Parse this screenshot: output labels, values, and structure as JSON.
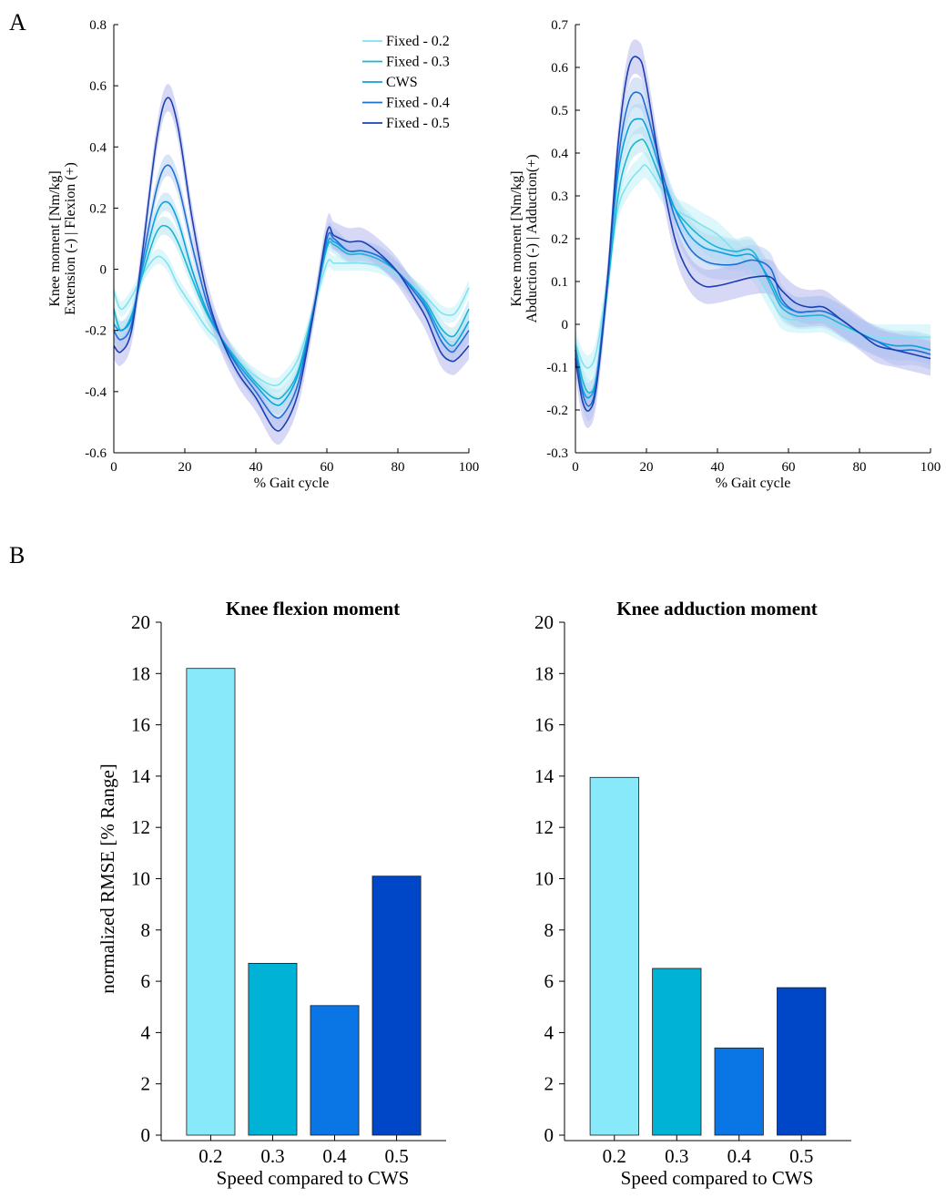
{
  "panel_labels": [
    "A",
    "B"
  ],
  "chart_data": [
    {
      "type": "line",
      "xlabel": "% Gait cycle",
      "ylabel": [
        "Knee moment [Nm/kg]",
        "Extension (-) | Flexion (+)"
      ],
      "xlim": [
        0,
        100
      ],
      "ylim": [
        -0.6,
        0.8
      ],
      "xticks": [
        0,
        20,
        40,
        60,
        80,
        100
      ],
      "yticks": [
        -0.6,
        -0.4,
        -0.2,
        0,
        0.2,
        0.4,
        0.6,
        0.8
      ],
      "ytick_labels": [
        "-0.6",
        "-0.4",
        "-0.2",
        "0",
        "0.2",
        "0.4",
        "0.6",
        "0.8"
      ],
      "grid": false,
      "legend_position": "top-right",
      "series": [
        {
          "name": "Fixed - 0.2",
          "color": "#7fe3f0",
          "band_color": "#c3f1f8",
          "x": [
            0,
            2,
            5,
            8,
            12,
            15,
            18,
            22,
            26,
            30,
            35,
            40,
            45,
            48,
            52,
            56,
            60,
            62,
            66,
            70,
            75,
            80,
            85,
            88,
            92,
            95,
            97,
            100
          ],
          "y": [
            -0.07,
            -0.13,
            -0.09,
            -0.02,
            0.04,
            0.02,
            -0.05,
            -0.12,
            -0.19,
            -0.24,
            -0.3,
            -0.35,
            -0.38,
            -0.36,
            -0.29,
            -0.14,
            0.02,
            0.02,
            0.02,
            0.02,
            0.01,
            -0.02,
            -0.06,
            -0.09,
            -0.14,
            -0.15,
            -0.13,
            -0.06
          ],
          "band": 0.025
        },
        {
          "name": "Fixed - 0.3",
          "color": "#18b6d2",
          "band_color": "#b7e5f0",
          "x": [
            0,
            2,
            5,
            8,
            12,
            15,
            18,
            22,
            26,
            30,
            35,
            40,
            45,
            48,
            52,
            56,
            60,
            62,
            66,
            70,
            75,
            80,
            85,
            88,
            92,
            95,
            97,
            100
          ],
          "y": [
            -0.13,
            -0.2,
            -0.15,
            -0.02,
            0.12,
            0.14,
            0.09,
            -0.03,
            -0.14,
            -0.22,
            -0.3,
            -0.37,
            -0.42,
            -0.41,
            -0.33,
            -0.14,
            0.07,
            0.08,
            0.05,
            0.05,
            0.03,
            -0.01,
            -0.07,
            -0.11,
            -0.19,
            -0.22,
            -0.2,
            -0.13
          ],
          "band": 0.03
        },
        {
          "name": "CWS",
          "color": "#0aa3e0",
          "band_color": "#b5ddf4",
          "x": [
            0,
            2,
            5,
            8,
            12,
            15,
            18,
            22,
            26,
            30,
            35,
            40,
            45,
            48,
            52,
            56,
            60,
            62,
            66,
            70,
            75,
            80,
            85,
            88,
            92,
            95,
            97,
            100
          ],
          "y": [
            -0.18,
            -0.2,
            -0.16,
            0.0,
            0.18,
            0.22,
            0.16,
            0.0,
            -0.13,
            -0.22,
            -0.31,
            -0.38,
            -0.44,
            -0.43,
            -0.34,
            -0.15,
            0.08,
            0.09,
            0.06,
            0.06,
            0.04,
            -0.01,
            -0.07,
            -0.12,
            -0.21,
            -0.25,
            -0.23,
            -0.17
          ],
          "band": 0.03
        },
        {
          "name": "Fixed - 0.4",
          "color": "#1d6fd6",
          "band_color": "#b6cff1",
          "x": [
            0,
            2,
            5,
            8,
            12,
            15,
            18,
            22,
            26,
            30,
            35,
            40,
            45,
            48,
            52,
            56,
            60,
            62,
            66,
            70,
            75,
            80,
            85,
            88,
            92,
            95,
            97,
            100
          ],
          "y": [
            -0.2,
            -0.23,
            -0.18,
            0.02,
            0.26,
            0.34,
            0.28,
            0.08,
            -0.1,
            -0.22,
            -0.32,
            -0.4,
            -0.48,
            -0.47,
            -0.37,
            -0.15,
            0.1,
            0.1,
            0.06,
            0.06,
            0.04,
            -0.01,
            -0.08,
            -0.13,
            -0.23,
            -0.27,
            -0.25,
            -0.2
          ],
          "band": 0.035
        },
        {
          "name": "Fixed - 0.5",
          "color": "#1c3fb0",
          "band_color": "#b5b8ee",
          "x": [
            0,
            2,
            5,
            8,
            12,
            15,
            18,
            22,
            26,
            30,
            35,
            40,
            45,
            48,
            52,
            56,
            60,
            62,
            66,
            70,
            75,
            80,
            85,
            88,
            92,
            95,
            97,
            100
          ],
          "y": [
            -0.25,
            -0.27,
            -0.2,
            0.05,
            0.42,
            0.56,
            0.47,
            0.17,
            -0.07,
            -0.22,
            -0.34,
            -0.42,
            -0.52,
            -0.51,
            -0.4,
            -0.16,
            0.12,
            0.11,
            0.09,
            0.09,
            0.05,
            -0.01,
            -0.1,
            -0.16,
            -0.27,
            -0.3,
            -0.29,
            -0.25
          ],
          "band": 0.045
        }
      ]
    },
    {
      "type": "line",
      "xlabel": "% Gait cycle",
      "ylabel": [
        "Knee moment [Nm/kg]",
        "Abduction (-) | Adduction(+)"
      ],
      "xlim": [
        0,
        100
      ],
      "ylim": [
        -0.3,
        0.7
      ],
      "xticks": [
        0,
        20,
        40,
        60,
        80,
        100
      ],
      "yticks": [
        -0.3,
        -0.2,
        -0.1,
        0,
        0.1,
        0.2,
        0.3,
        0.4,
        0.5,
        0.6,
        0.7
      ],
      "ytick_labels": [
        "-0.3",
        "-0.2",
        "-0.1",
        "0",
        "0.1",
        "0.2",
        "0.3",
        "0.4",
        "0.5",
        "0.6",
        "0.7"
      ],
      "grid": false,
      "series": [
        {
          "name": "Fixed - 0.2",
          "color": "#7fe3f0",
          "band_color": "#c3f1f8",
          "x": [
            0,
            2,
            4,
            6,
            9,
            12,
            15,
            18,
            20,
            24,
            28,
            32,
            36,
            40,
            45,
            50,
            55,
            58,
            62,
            66,
            70,
            75,
            80,
            85,
            90,
            95,
            100
          ],
          "y": [
            -0.04,
            -0.09,
            -0.1,
            -0.06,
            0.1,
            0.27,
            0.33,
            0.36,
            0.37,
            0.32,
            0.27,
            0.25,
            0.23,
            0.21,
            0.17,
            0.13,
            0.06,
            0.02,
            0.01,
            0.01,
            0.01,
            -0.01,
            -0.02,
            -0.03,
            -0.03,
            -0.03,
            -0.03
          ],
          "band": 0.03
        },
        {
          "name": "Fixed - 0.3",
          "color": "#18b6d2",
          "band_color": "#b7e5f0",
          "x": [
            0,
            2,
            4,
            6,
            9,
            12,
            15,
            18,
            20,
            24,
            28,
            32,
            36,
            40,
            45,
            50,
            55,
            58,
            62,
            66,
            70,
            75,
            80,
            85,
            90,
            95,
            100
          ],
          "y": [
            -0.05,
            -0.13,
            -0.16,
            -0.12,
            0.08,
            0.3,
            0.4,
            0.43,
            0.42,
            0.34,
            0.27,
            0.23,
            0.2,
            0.18,
            0.17,
            0.17,
            0.09,
            0.04,
            0.02,
            0.02,
            0.02,
            0.0,
            -0.02,
            -0.04,
            -0.05,
            -0.05,
            -0.06
          ],
          "band": 0.03
        },
        {
          "name": "CWS",
          "color": "#0aa3e0",
          "band_color": "#b5ddf4",
          "x": [
            0,
            2,
            4,
            6,
            9,
            12,
            15,
            18,
            20,
            24,
            28,
            32,
            36,
            40,
            45,
            50,
            55,
            58,
            62,
            66,
            70,
            75,
            80,
            85,
            90,
            95,
            100
          ],
          "y": [
            -0.06,
            -0.15,
            -0.17,
            -0.12,
            0.1,
            0.35,
            0.46,
            0.48,
            0.46,
            0.36,
            0.27,
            0.21,
            0.18,
            0.17,
            0.16,
            0.16,
            0.1,
            0.05,
            0.03,
            0.03,
            0.03,
            0.01,
            -0.02,
            -0.04,
            -0.05,
            -0.05,
            -0.06
          ],
          "band": 0.035
        },
        {
          "name": "Fixed - 0.4",
          "color": "#1d6fd6",
          "band_color": "#b6cff1",
          "x": [
            0,
            2,
            4,
            6,
            9,
            12,
            15,
            18,
            20,
            24,
            28,
            32,
            36,
            40,
            45,
            50,
            55,
            58,
            62,
            66,
            70,
            75,
            80,
            85,
            90,
            95,
            100
          ],
          "y": [
            -0.06,
            -0.16,
            -0.19,
            -0.13,
            0.1,
            0.38,
            0.52,
            0.54,
            0.5,
            0.37,
            0.25,
            0.18,
            0.15,
            0.14,
            0.14,
            0.15,
            0.13,
            0.06,
            0.03,
            0.03,
            0.03,
            0.01,
            -0.02,
            -0.04,
            -0.06,
            -0.06,
            -0.07
          ],
          "band": 0.035
        },
        {
          "name": "Fixed - 0.5",
          "color": "#1c3fb0",
          "band_color": "#b5b8ee",
          "x": [
            0,
            2,
            4,
            6,
            9,
            12,
            15,
            18,
            20,
            24,
            28,
            32,
            36,
            40,
            45,
            50,
            55,
            58,
            62,
            66,
            70,
            75,
            80,
            85,
            90,
            95,
            100
          ],
          "y": [
            -0.08,
            -0.18,
            -0.2,
            -0.14,
            0.1,
            0.42,
            0.6,
            0.62,
            0.56,
            0.36,
            0.2,
            0.12,
            0.09,
            0.09,
            0.1,
            0.11,
            0.11,
            0.08,
            0.05,
            0.04,
            0.04,
            0.01,
            -0.02,
            -0.05,
            -0.06,
            -0.07,
            -0.08
          ],
          "band": 0.04
        }
      ]
    },
    {
      "type": "bar",
      "title": "Knee flexion moment",
      "xlabel": "Speed compared to CWS",
      "ylabel": "normalized RMSE [% Range]",
      "categories": [
        "0.2",
        "0.3",
        "0.4",
        "0.5"
      ],
      "values": [
        18.2,
        6.7,
        5.05,
        10.1
      ],
      "colors": [
        "#88e9fb",
        "#00b2d6",
        "#0a76e6",
        "#0047c8"
      ],
      "ylim": [
        0,
        20
      ],
      "yticks": [
        0,
        2,
        4,
        6,
        8,
        10,
        12,
        14,
        16,
        18,
        20
      ],
      "ytick_labels": [
        "0",
        "2",
        "4",
        "6",
        "8",
        "10",
        "12",
        "14",
        "16",
        "18",
        "20"
      ],
      "grid": false
    },
    {
      "type": "bar",
      "title": "Knee adduction moment",
      "xlabel": "Speed compared to CWS",
      "ylabel": "",
      "categories": [
        "0.2",
        "0.3",
        "0.4",
        "0.5"
      ],
      "values": [
        13.95,
        6.5,
        3.4,
        5.75
      ],
      "colors": [
        "#88e9fb",
        "#00b2d6",
        "#0a76e6",
        "#0047c8"
      ],
      "ylim": [
        0,
        20
      ],
      "yticks": [
        0,
        2,
        4,
        6,
        8,
        10,
        12,
        14,
        16,
        18,
        20
      ],
      "ytick_labels": [
        "0",
        "2",
        "4",
        "6",
        "8",
        "10",
        "12",
        "14",
        "16",
        "18",
        "20"
      ],
      "grid": false
    }
  ]
}
